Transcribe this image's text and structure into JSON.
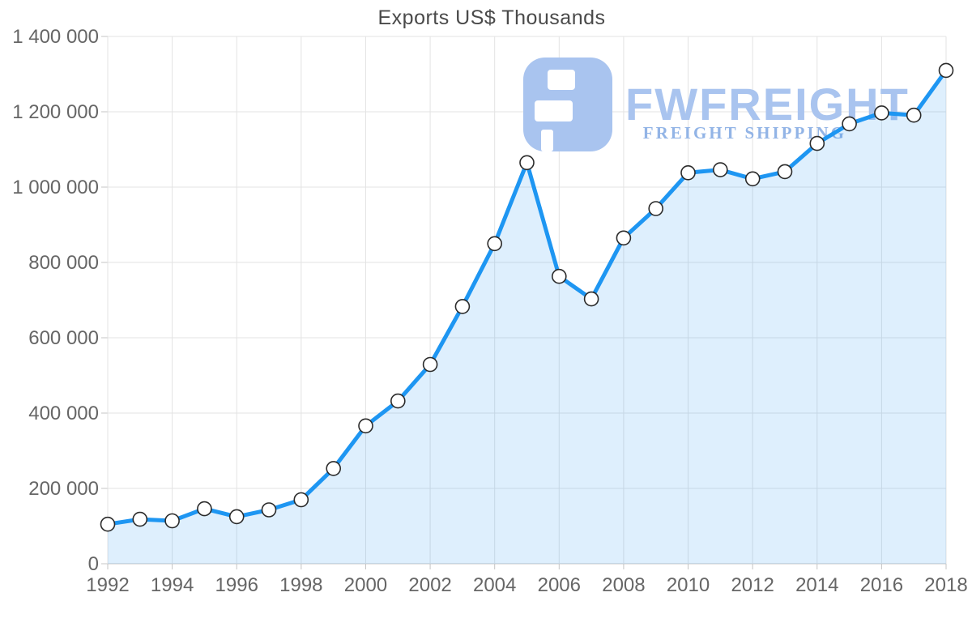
{
  "chart_data": {
    "type": "area",
    "title": "Exports US$ Thousands",
    "series_name": "Exports US$ Thousands",
    "x": [
      1992,
      1993,
      1994,
      1995,
      1996,
      1997,
      1998,
      1999,
      2000,
      2001,
      2002,
      2003,
      2004,
      2005,
      2006,
      2007,
      2008,
      2009,
      2010,
      2011,
      2012,
      2013,
      2014,
      2015,
      2016,
      2017,
      2018
    ],
    "values": [
      105000,
      118000,
      114000,
      146000,
      125000,
      143000,
      170000,
      253000,
      366000,
      432000,
      529000,
      683000,
      850000,
      1065000,
      763000,
      703000,
      865000,
      943000,
      1038000,
      1046000,
      1022000,
      1041000,
      1116000,
      1168000,
      1197000,
      1191000,
      1310000
    ],
    "xlim": [
      1992,
      2018
    ],
    "ylim": [
      0,
      1400000
    ],
    "grid": true,
    "legend": "none",
    "y_ticks": [
      {
        "value": 0,
        "label": "0"
      },
      {
        "value": 200000,
        "label": "200 000"
      },
      {
        "value": 400000,
        "label": "400 000"
      },
      {
        "value": 600000,
        "label": "600 000"
      },
      {
        "value": 800000,
        "label": "800 000"
      },
      {
        "value": 1000000,
        "label": "1 000 000"
      },
      {
        "value": 1200000,
        "label": "1 200 000"
      },
      {
        "value": 1400000,
        "label": "1 400 000"
      }
    ],
    "x_ticks": [
      {
        "value": 1992,
        "label": "1992"
      },
      {
        "value": 1994,
        "label": "1994"
      },
      {
        "value": 1996,
        "label": "1996"
      },
      {
        "value": 1998,
        "label": "1998"
      },
      {
        "value": 2000,
        "label": "2000"
      },
      {
        "value": 2002,
        "label": "2002"
      },
      {
        "value": 2004,
        "label": "2004"
      },
      {
        "value": 2006,
        "label": "2006"
      },
      {
        "value": 2008,
        "label": "2008"
      },
      {
        "value": 2010,
        "label": "2010"
      },
      {
        "value": 2012,
        "label": "2012"
      },
      {
        "value": 2014,
        "label": "2014"
      },
      {
        "value": 2016,
        "label": "2016"
      },
      {
        "value": 2018,
        "label": "2018"
      }
    ]
  },
  "watermark": {
    "brand": "FWFREIGHT",
    "tagline": "FREIGHT SHIPPING"
  },
  "colors": {
    "line": "#1e96f2",
    "area": "rgba(33,149,242,0.15)",
    "marker_fill": "#ffffff",
    "marker_stroke": "#2b2b2b",
    "grid": "#e3e3e3",
    "axis": "#c4c4c4",
    "label": "#666666",
    "title": "#4a4a4a",
    "watermark_brand": "#a9c4ef",
    "watermark_tagline": "#92b4e6",
    "watermark_glyph": "#a9c4ef"
  }
}
